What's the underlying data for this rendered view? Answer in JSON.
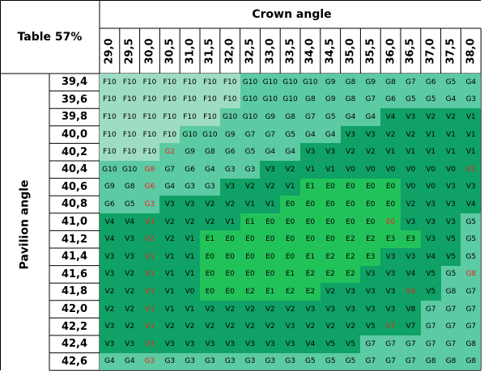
{
  "title": "Table 57%",
  "crown_label": "Crown angle",
  "pavilion_label": "Pavilion angle",
  "crown_angles": [
    "29,0",
    "29,5",
    "30,0",
    "30,5",
    "31,0",
    "31,5",
    "32,0",
    "32,5",
    "33,0",
    "33,5",
    "34,0",
    "34,5",
    "35,0",
    "35,5",
    "36,0",
    "36,5",
    "37,0",
    "37,5",
    "38,0"
  ],
  "pavilion_angles": [
    "39,4",
    "39,6",
    "39,8",
    "40,0",
    "40,2",
    "40,4",
    "40,6",
    "40,8",
    "41,0",
    "41,2",
    "41,4",
    "41,6",
    "41,8",
    "42,0",
    "42,2",
    "42,4",
    "42,6"
  ],
  "grades": [
    [
      "F10",
      "F10",
      "F10",
      "F10",
      "F10",
      "F10",
      "F10",
      "G10",
      "G10",
      "G10",
      "G10",
      "G9",
      "G8",
      "G9",
      "G8",
      "G7",
      "G6",
      "G5",
      "G4"
    ],
    [
      "F10",
      "F10",
      "F10",
      "F10",
      "F10",
      "F10",
      "F10",
      "G10",
      "G10",
      "G10",
      "G8",
      "G9",
      "G8",
      "G7",
      "G6",
      "G5",
      "G5",
      "G4",
      "G3"
    ],
    [
      "F10",
      "F10",
      "F10",
      "F10",
      "F10",
      "F10",
      "G10",
      "G10",
      "G9",
      "G8",
      "G7",
      "G5",
      "G4",
      "G4",
      "V4",
      "V3",
      "V2",
      "V2",
      "V1"
    ],
    [
      "F10",
      "F10",
      "F10",
      "F10",
      "G10",
      "G10",
      "G9",
      "G7",
      "G7",
      "G5",
      "G4",
      "G4",
      "V3",
      "V3",
      "V2",
      "V2",
      "V1",
      "V1",
      "V1"
    ],
    [
      "F10",
      "F10",
      "F10",
      "G2",
      "G9",
      "G8",
      "G6",
      "G5",
      "G4",
      "G4",
      "V3",
      "V3",
      "V2",
      "V2",
      "V1",
      "V1",
      "V1",
      "V1",
      "V1"
    ],
    [
      "G10",
      "G10",
      "G8",
      "G7",
      "G6",
      "G4",
      "G3",
      "G3",
      "V3",
      "V2",
      "V1",
      "V1",
      "V0",
      "V0",
      "V0",
      "V0",
      "V0",
      "V0",
      "V1"
    ],
    [
      "G9",
      "G8",
      "G6",
      "G4",
      "G3",
      "G3",
      "V3",
      "V2",
      "V2",
      "V1",
      "E1",
      "E0",
      "E0",
      "E0",
      "E0",
      "V0",
      "V0",
      "V3",
      "V3"
    ],
    [
      "G6",
      "G5",
      "G3",
      "V3",
      "V3",
      "V2",
      "V2",
      "V1",
      "V1",
      "E0",
      "E0",
      "E0",
      "E0",
      "E0",
      "E0",
      "V2",
      "V3",
      "V3",
      "V4"
    ],
    [
      "V4",
      "V4",
      "V3",
      "V2",
      "V2",
      "V2",
      "V1",
      "E1",
      "E0",
      "E0",
      "E0",
      "E0",
      "E0",
      "E0",
      "E0",
      "V3",
      "V3",
      "V3",
      "G5"
    ],
    [
      "V4",
      "V3",
      "V2",
      "V2",
      "V1",
      "E1",
      "E0",
      "E0",
      "E0",
      "E0",
      "E0",
      "E0",
      "E2",
      "E2",
      "E3",
      "E3",
      "V3",
      "V5",
      "G5"
    ],
    [
      "V3",
      "V3",
      "V1",
      "V1",
      "V1",
      "E0",
      "E0",
      "E0",
      "E0",
      "E0",
      "E1",
      "E2",
      "E2",
      "E3",
      "V3",
      "V3",
      "V4",
      "V5",
      "G5"
    ],
    [
      "V3",
      "V2",
      "V1",
      "V1",
      "V1",
      "E0",
      "E0",
      "E0",
      "E0",
      "E1",
      "E2",
      "E2",
      "E2",
      "V3",
      "V3",
      "V4",
      "V5",
      "G5",
      "G8"
    ],
    [
      "V2",
      "V2",
      "V1",
      "V1",
      "V0",
      "E0",
      "E0",
      "E2",
      "E1",
      "E2",
      "E2",
      "V2",
      "V3",
      "V3",
      "V3",
      "V4",
      "V5",
      "G8",
      "G7"
    ],
    [
      "V2",
      "V2",
      "V1",
      "V1",
      "V1",
      "V2",
      "V2",
      "V2",
      "V2",
      "V2",
      "V3",
      "V3",
      "V3",
      "V3",
      "V3",
      "V8",
      "G7",
      "G7",
      "G7"
    ],
    [
      "V3",
      "V2",
      "V1",
      "V2",
      "V2",
      "V2",
      "V2",
      "V2",
      "V2",
      "V3",
      "V2",
      "V2",
      "V2",
      "V5",
      "V7",
      "V7",
      "G7",
      "G7",
      "G7"
    ],
    [
      "V3",
      "V3",
      "V3",
      "V3",
      "V3",
      "V3",
      "V3",
      "V3",
      "V3",
      "V3",
      "V4",
      "V5",
      "V5",
      "G7",
      "G7",
      "G7",
      "G7",
      "G7",
      "G8"
    ],
    [
      "G4",
      "G4",
      "G3",
      "G3",
      "G3",
      "G3",
      "G3",
      "G3",
      "G3",
      "G3",
      "G5",
      "G5",
      "G5",
      "G7",
      "G7",
      "G7",
      "G8",
      "G8",
      "G8"
    ]
  ],
  "highlight_red": [
    "4,3",
    "5,2",
    "6,2",
    "7,2",
    "8,2",
    "9,2",
    "10,2",
    "11,2",
    "12,2",
    "13,2",
    "14,2",
    "15,2",
    "16,2",
    "5,18",
    "8,14",
    "11,18",
    "12,15",
    "14,14"
  ],
  "colors": {
    "F": "#9fdcc4",
    "G": "#5ccaa3",
    "V": "#0fa166",
    "E": "#22c25a",
    "header_bg": "#ffffff",
    "grid_line": "#000000",
    "boundary_red": "#dd1111",
    "boundary_orange": "#e08a00",
    "boundary_yellow": "#c8ff20",
    "red_text": "#ee2222"
  }
}
